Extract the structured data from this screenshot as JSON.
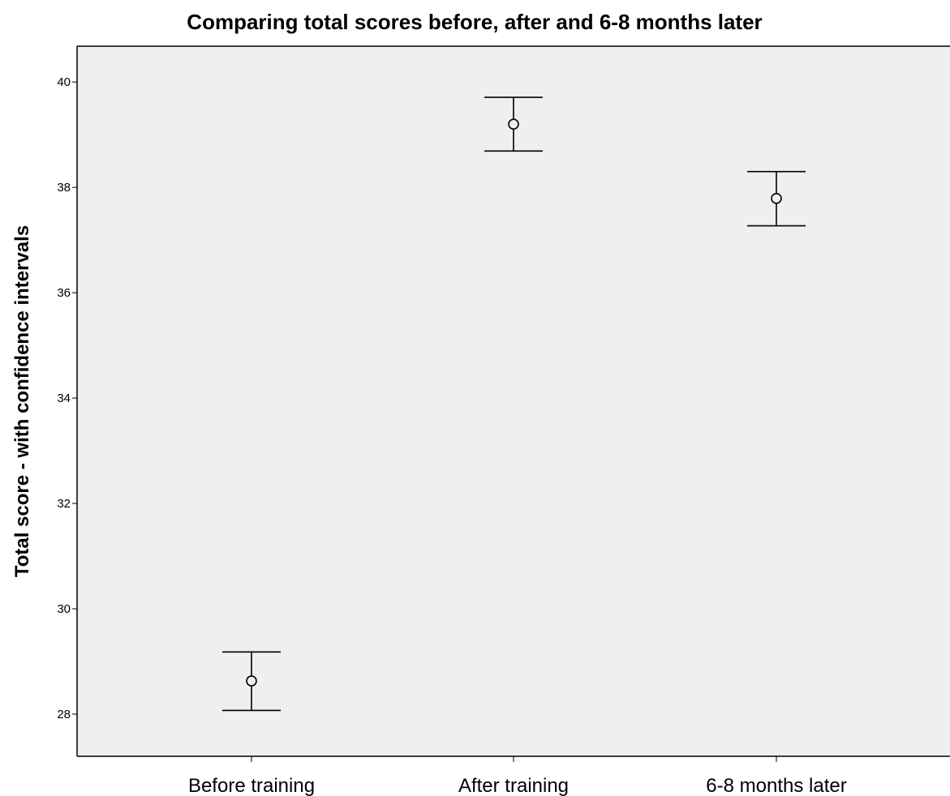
{
  "chart_data": {
    "type": "scatter",
    "title": "Comparing total scores before, after and 6-8 months later",
    "xlabel": "",
    "ylabel": "Total score - with confidence intervals",
    "categories": [
      "Before training",
      "After training",
      "6-8 months later"
    ],
    "values": [
      28.63,
      39.2,
      37.79
    ],
    "ci_lower": [
      28.07,
      38.69,
      37.27
    ],
    "ci_upper": [
      29.18,
      39.71,
      38.3
    ],
    "yticks": [
      28,
      30,
      32,
      34,
      36,
      38,
      40
    ],
    "ylim": [
      27.2,
      40.68
    ],
    "grid": false,
    "legend": "none",
    "colors": {
      "plot_background": "#efefef",
      "marker": "#000000",
      "error_bar": "#000000",
      "axis": "#000000"
    }
  }
}
